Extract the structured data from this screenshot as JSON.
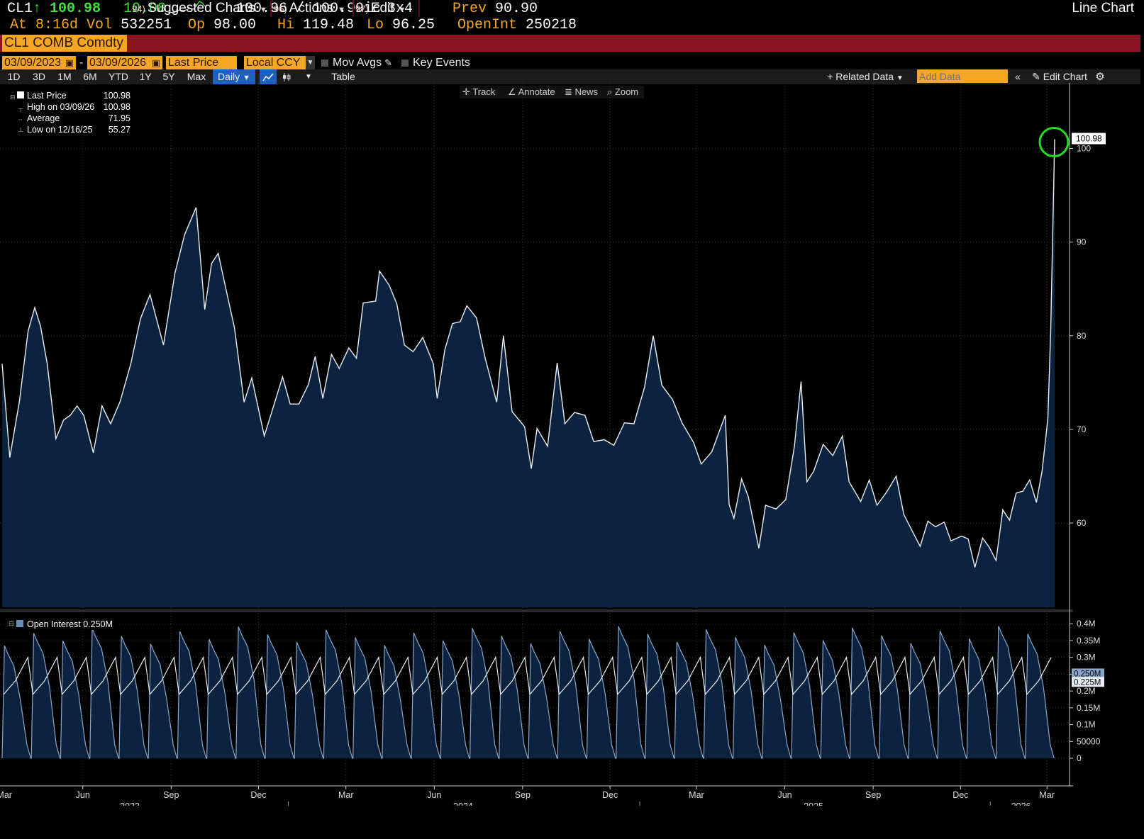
{
  "quote": {
    "ticker": "CL1",
    "arrow": "↑",
    "last": "100.98",
    "change": "10.08",
    "bid_ask": "100.96 / 100.99ic",
    "size": "3x4",
    "prev_label": "Prev",
    "prev": "90.90",
    "time": "At 8:16d",
    "vol_label": "Vol",
    "vol": "532251",
    "open_label": "Op",
    "open": "98.00",
    "hi_label": "Hi",
    "hi": "119.48",
    "lo_label": "Lo",
    "lo": "96.25",
    "oi_label": "OpenInt",
    "oi": "250218"
  },
  "menu": {
    "security": "CL1 COMB Comdty",
    "suggested_num": "94)",
    "suggested": "Suggested Charts",
    "actions_num": "96)",
    "actions": "Actions",
    "edit_num": "97)",
    "edit": "Edit",
    "title": "Line Chart"
  },
  "range": {
    "start": "03/09/2023",
    "dash": "-",
    "end": "03/09/2026",
    "field": "Last Price",
    "currency": "Local CCY",
    "mov_avgs": "Mov Avgs",
    "key_events": "Key Events"
  },
  "toolbar": {
    "periods": [
      "1D",
      "3D",
      "1M",
      "6M",
      "YTD",
      "1Y",
      "5Y",
      "Max"
    ],
    "frequency": "Daily",
    "table": "Table",
    "related": "+ Related Data",
    "add_data_placeholder": "Add Data",
    "edit_chart": "Edit Chart"
  },
  "tools": {
    "track": "Track",
    "annotate": "Annotate",
    "news": "News",
    "zoom": "Zoom"
  },
  "legend": {
    "last_price_label": "Last Price",
    "last_price": "100.98",
    "high_label": "High on 03/09/26",
    "high": "100.98",
    "avg_label": "Average",
    "avg": "71.95",
    "low_label": "Low on 12/16/25",
    "low": "55.27",
    "oi_label": "Open Interest 0.250M"
  },
  "colors": {
    "background": "#000000",
    "area_fill": "#0c2340",
    "line": "#e8eef5",
    "menu_bar": "#8a1420",
    "orange": "#f5a623",
    "green": "#3ee23e",
    "highlight_circle": "#22dd22"
  },
  "chart_data": [
    {
      "type": "area",
      "series": [
        {
          "name": "Last Price"
        }
      ],
      "x_start": "2023-03-09",
      "x_end": "2026-03-09",
      "points": [
        [
          "2023-03-09",
          77
        ],
        [
          "2023-03-17",
          67
        ],
        [
          "2023-03-27",
          73
        ],
        [
          "2023-04-05",
          80.5
        ],
        [
          "2023-04-12",
          83
        ],
        [
          "2023-04-18",
          81
        ],
        [
          "2023-04-25",
          77
        ],
        [
          "2023-05-04",
          69
        ],
        [
          "2023-05-12",
          71
        ],
        [
          "2023-05-19",
          71.5
        ],
        [
          "2023-05-26",
          72.5
        ],
        [
          "2023-06-02",
          71.5
        ],
        [
          "2023-06-12",
          67.5
        ],
        [
          "2023-06-21",
          72.5
        ],
        [
          "2023-06-30",
          70.6
        ],
        [
          "2023-07-10",
          73
        ],
        [
          "2023-07-21",
          77
        ],
        [
          "2023-07-31",
          81.8
        ],
        [
          "2023-08-10",
          84.4
        ],
        [
          "2023-08-18",
          81.3
        ],
        [
          "2023-08-24",
          79
        ],
        [
          "2023-09-05",
          86.7
        ],
        [
          "2023-09-15",
          90.8
        ],
        [
          "2023-09-27",
          93.7
        ],
        [
          "2023-10-06",
          82.8
        ],
        [
          "2023-10-13",
          87.7
        ],
        [
          "2023-10-20",
          88.8
        ],
        [
          "2023-10-27",
          85.5
        ],
        [
          "2023-11-06",
          80.8
        ],
        [
          "2023-11-16",
          72.9
        ],
        [
          "2023-11-24",
          75.5
        ],
        [
          "2023-12-07",
          69.3
        ],
        [
          "2023-12-14",
          71.6
        ],
        [
          "2023-12-26",
          75.6
        ],
        [
          "2024-01-03",
          72.7
        ],
        [
          "2024-01-12",
          72.7
        ],
        [
          "2024-01-22",
          74.8
        ],
        [
          "2024-01-29",
          77.8
        ],
        [
          "2024-02-06",
          73.3
        ],
        [
          "2024-02-15",
          78
        ],
        [
          "2024-02-23",
          76.5
        ],
        [
          "2024-03-04",
          78.7
        ],
        [
          "2024-03-12",
          77.6
        ],
        [
          "2024-03-19",
          83.5
        ],
        [
          "2024-04-01",
          83.7
        ],
        [
          "2024-04-05",
          86.9
        ],
        [
          "2024-04-15",
          85.4
        ],
        [
          "2024-04-23",
          83.4
        ],
        [
          "2024-05-01",
          79
        ],
        [
          "2024-05-10",
          78.3
        ],
        [
          "2024-05-20",
          79.8
        ],
        [
          "2024-05-31",
          77
        ],
        [
          "2024-06-04",
          73.3
        ],
        [
          "2024-06-12",
          78.5
        ],
        [
          "2024-06-20",
          81.3
        ],
        [
          "2024-06-28",
          81.5
        ],
        [
          "2024-07-05",
          83.2
        ],
        [
          "2024-07-15",
          81.9
        ],
        [
          "2024-07-24",
          77.6
        ],
        [
          "2024-08-05",
          72.9
        ],
        [
          "2024-08-12",
          80
        ],
        [
          "2024-08-21",
          71.9
        ],
        [
          "2024-09-03",
          70.3
        ],
        [
          "2024-09-10",
          65.8
        ],
        [
          "2024-09-16",
          70.1
        ],
        [
          "2024-09-27",
          68.2
        ],
        [
          "2024-10-07",
          77.1
        ],
        [
          "2024-10-15",
          70.6
        ],
        [
          "2024-10-25",
          71.8
        ],
        [
          "2024-11-05",
          71.5
        ],
        [
          "2024-11-14",
          68.7
        ],
        [
          "2024-11-25",
          68.9
        ],
        [
          "2024-12-05",
          68.3
        ],
        [
          "2024-12-16",
          70.7
        ],
        [
          "2024-12-26",
          70.6
        ],
        [
          "2025-01-06",
          74.5
        ],
        [
          "2025-01-15",
          80
        ],
        [
          "2025-01-24",
          74.7
        ],
        [
          "2025-02-04",
          73.2
        ],
        [
          "2025-02-14",
          70.7
        ],
        [
          "2025-02-26",
          68.6
        ],
        [
          "2025-03-06",
          66.3
        ],
        [
          "2025-03-17",
          67.6
        ],
        [
          "2025-03-31",
          71.5
        ],
        [
          "2025-04-04",
          61.99
        ],
        [
          "2025-04-09",
          60.5
        ],
        [
          "2025-04-17",
          64.7
        ],
        [
          "2025-04-24",
          62.8
        ],
        [
          "2025-05-05",
          57.3
        ],
        [
          "2025-05-12",
          61.9
        ],
        [
          "2025-05-23",
          61.5
        ],
        [
          "2025-06-02",
          62.5
        ],
        [
          "2025-06-11",
          68.2
        ],
        [
          "2025-06-18",
          75.1
        ],
        [
          "2025-06-24",
          64.4
        ],
        [
          "2025-07-01",
          65.5
        ],
        [
          "2025-07-11",
          68.4
        ],
        [
          "2025-07-21",
          67.2
        ],
        [
          "2025-07-31",
          69.3
        ],
        [
          "2025-08-07",
          64.4
        ],
        [
          "2025-08-19",
          62.3
        ],
        [
          "2025-08-28",
          64.6
        ],
        [
          "2025-09-05",
          61.9
        ],
        [
          "2025-09-15",
          63.3
        ],
        [
          "2025-09-25",
          65
        ],
        [
          "2025-10-03",
          60.9
        ],
        [
          "2025-10-14",
          58.7
        ],
        [
          "2025-10-20",
          57.5
        ],
        [
          "2025-10-28",
          60.2
        ],
        [
          "2025-11-05",
          59.6
        ],
        [
          "2025-11-14",
          60.1
        ],
        [
          "2025-11-21",
          58.1
        ],
        [
          "2025-12-02",
          58.6
        ],
        [
          "2025-12-09",
          58.3
        ],
        [
          "2025-12-16",
          55.27
        ],
        [
          "2025-12-24",
          58.4
        ],
        [
          "2025-12-31",
          57.4
        ],
        [
          "2026-01-07",
          56.0
        ],
        [
          "2026-01-14",
          61.4
        ],
        [
          "2026-01-21",
          60.3
        ],
        [
          "2026-01-28",
          63.2
        ],
        [
          "2026-02-04",
          63.4
        ],
        [
          "2026-02-11",
          64.6
        ],
        [
          "2026-02-18",
          62.2
        ],
        [
          "2026-02-24",
          65.6
        ],
        [
          "2026-03-02",
          71.2
        ],
        [
          "2026-03-05",
          81.0
        ],
        [
          "2026-03-09",
          100.98
        ]
      ],
      "ylim": [
        51,
        107
      ],
      "yticks": [
        60,
        70,
        80,
        90,
        100
      ],
      "last_label": "100.98"
    },
    {
      "type": "area",
      "series": [
        {
          "name": "Open Interest"
        }
      ],
      "oi_last": "0.250M",
      "ytick_labels": [
        "0",
        "50000",
        "0.1M",
        "0.15M",
        "0.2M",
        "0.25M",
        "0.3M",
        "0.35M",
        "0.4M"
      ],
      "yticks": [
        0,
        50000,
        100000,
        150000,
        200000,
        250000,
        300000,
        350000,
        400000
      ],
      "ylim": [
        -40000,
        430000
      ],
      "last_labels": [
        "0.250M",
        "0.225M"
      ],
      "pattern": "monthly roll cycle: area peaks about 0.34M–0.40M early in each month and falls to about 0 at expiry; secondary line oscillates about 0.19M–0.30M"
    }
  ],
  "xaxis": {
    "months": [
      "Mar",
      "Jun",
      "Sep",
      "Dec",
      "Mar",
      "Jun",
      "Sep",
      "Dec",
      "Mar",
      "Jun",
      "Sep",
      "Dec",
      "Mar"
    ],
    "years": [
      "2023",
      "2024",
      "2025",
      "2026"
    ]
  }
}
